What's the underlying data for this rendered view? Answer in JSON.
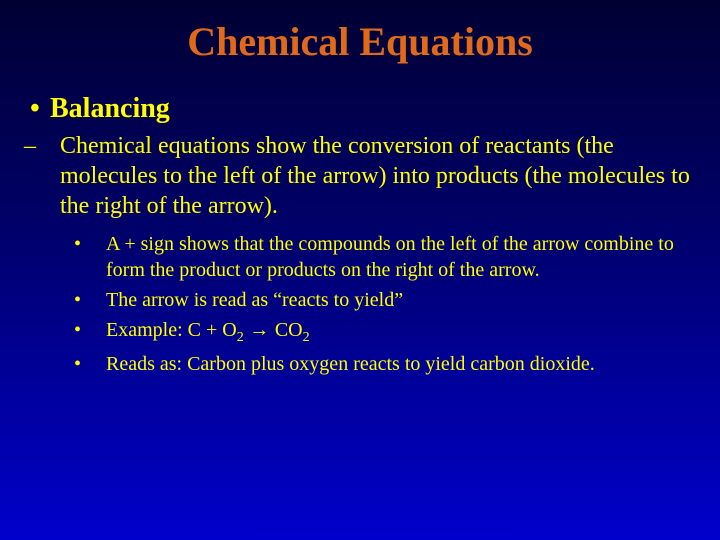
{
  "slide": {
    "title": "Chemical Equations",
    "title_color": "#e06a1a",
    "text_color": "#ffff00",
    "background_gradient": {
      "top": "#000033",
      "mid": "#000066",
      "bottom": "#0000cc"
    },
    "font_family": "Times New Roman",
    "title_fontsize_pt": 40,
    "lvl1_fontsize_pt": 28,
    "lvl2_fontsize_pt": 24,
    "lvl3_fontsize_pt": 20,
    "lvl1": {
      "bullet": "•",
      "text": "Balancing"
    },
    "lvl2": {
      "dash": "–",
      "text": "Chemical equations show the conversion of reactants (the molecules to the left of the arrow) into products (the molecules to the right of the arrow)."
    },
    "lvl3": {
      "bullet": "•",
      "items": [
        "A + sign shows that the compounds on the left of the arrow combine to form the product or products on the right of the arrow.",
        "The arrow is read as “reacts to yield”",
        "",
        "Reads as: Carbon plus oxygen reacts to yield carbon dioxide."
      ],
      "example_prefix": "Example:    C + O",
      "example_sub1": "2",
      "example_arrow": " → ",
      "example_co": "CO",
      "example_sub2": "2"
    }
  }
}
